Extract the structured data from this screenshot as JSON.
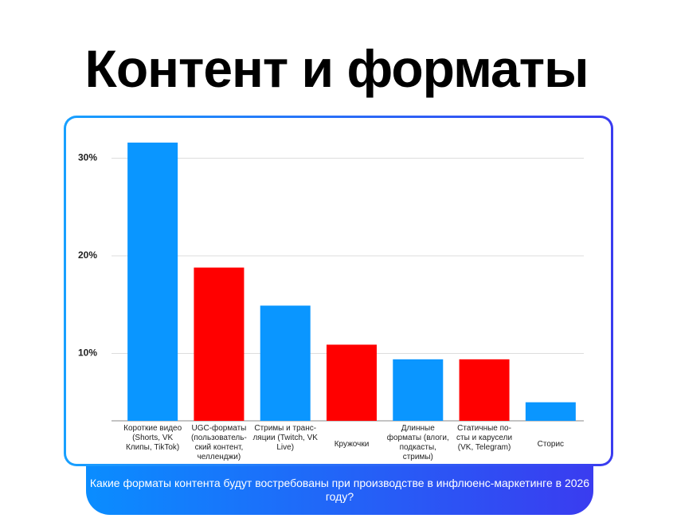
{
  "chart_data": {
    "type": "bar",
    "title": "Контент и форматы",
    "caption": "Какие форматы контента будут востребованы при производстве в инфлюенс-маркетинге в 2026 году?",
    "categories": [
      "Короткие видео (Shorts, VK Клипы, TikTok)",
      "UGC-форматы (пользователь-ский контент, челленджи)",
      "Стримы и транс-ляции (Twitch, VK Live)",
      "Кружочки",
      "Длинные форматы (влоги, подкасты, стримы)",
      "Статичные по-сты и карусели (VK, Telegram)",
      "Сторис"
    ],
    "values": [
      31.6,
      18.8,
      14.9,
      10.9,
      9.4,
      9.4,
      5.0
    ],
    "colors": [
      "#0a96ff",
      "#ff0000",
      "#0a96ff",
      "#ff0000",
      "#0a96ff",
      "#ff0000",
      "#0a96ff"
    ],
    "ylim": [
      3.1,
      32
    ],
    "yticks": [
      {
        "value": 10,
        "label": "10%"
      },
      {
        "value": 20,
        "label": "20%"
      },
      {
        "value": 30,
        "label": "30%"
      }
    ],
    "grid": true
  }
}
